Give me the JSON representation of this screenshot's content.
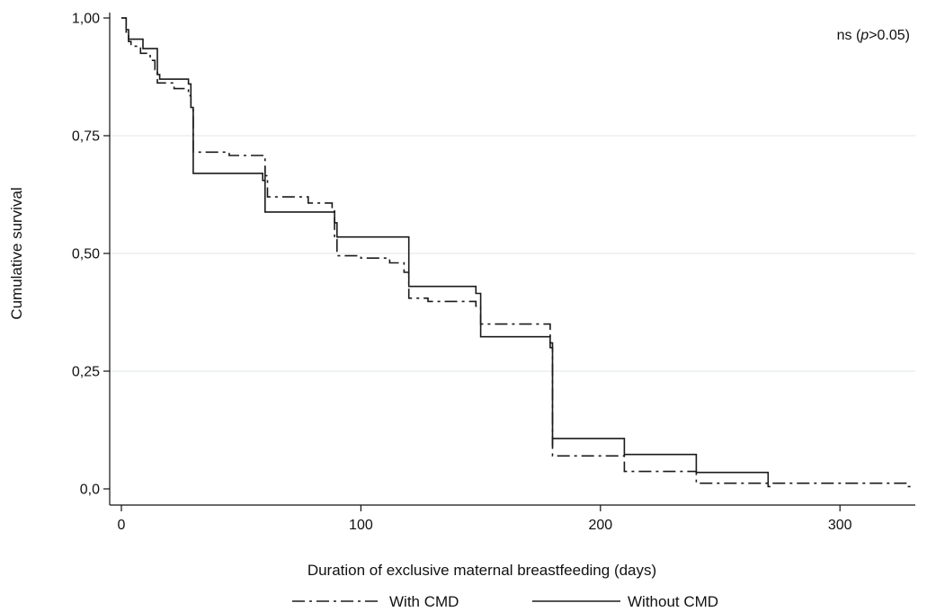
{
  "chart_data": {
    "type": "line",
    "title": "",
    "xlabel": "Duration of exclusive maternal breastfeeding (days)",
    "ylabel": "Cumulative survival",
    "xlim": [
      0,
      330
    ],
    "ylim": [
      0,
      1
    ],
    "x_ticks": [
      0,
      100,
      200,
      300
    ],
    "x_tick_labels": [
      "0",
      "100",
      "200",
      "300"
    ],
    "y_ticks": [
      0,
      0.25,
      0.5,
      0.75,
      1.0
    ],
    "y_tick_labels": [
      "0,0",
      "0,25",
      "0,50",
      "0,75",
      "1,00"
    ],
    "grid": "horizontal",
    "annotation": {
      "prefix": "ns (",
      "italic": "p",
      "suffix": ">0.05)"
    },
    "legend_position": "bottom",
    "series": [
      {
        "name": "With CMD",
        "style": "dash-dot",
        "color": "#1a1a1a",
        "points": [
          [
            0,
            1.0
          ],
          [
            2,
            1.0
          ],
          [
            2,
            0.97
          ],
          [
            3,
            0.97
          ],
          [
            3,
            0.95
          ],
          [
            4,
            0.95
          ],
          [
            4,
            0.94
          ],
          [
            8,
            0.94
          ],
          [
            8,
            0.925
          ],
          [
            12,
            0.925
          ],
          [
            12,
            0.91
          ],
          [
            14,
            0.91
          ],
          [
            14,
            0.89
          ],
          [
            15,
            0.89
          ],
          [
            15,
            0.862
          ],
          [
            22,
            0.862
          ],
          [
            22,
            0.85
          ],
          [
            28,
            0.85
          ],
          [
            28,
            0.835
          ],
          [
            29,
            0.835
          ],
          [
            29,
            0.805
          ],
          [
            30,
            0.805
          ],
          [
            30,
            0.715
          ],
          [
            45,
            0.715
          ],
          [
            45,
            0.708
          ],
          [
            60,
            0.708
          ],
          [
            60,
            0.665
          ],
          [
            61,
            0.665
          ],
          [
            61,
            0.62
          ],
          [
            78,
            0.62
          ],
          [
            78,
            0.607
          ],
          [
            88,
            0.607
          ],
          [
            88,
            0.59
          ],
          [
            89,
            0.59
          ],
          [
            89,
            0.53
          ],
          [
            90,
            0.53
          ],
          [
            90,
            0.495
          ],
          [
            100,
            0.495
          ],
          [
            100,
            0.49
          ],
          [
            112,
            0.49
          ],
          [
            112,
            0.48
          ],
          [
            118,
            0.48
          ],
          [
            118,
            0.46
          ],
          [
            120,
            0.46
          ],
          [
            120,
            0.405
          ],
          [
            128,
            0.405
          ],
          [
            128,
            0.398
          ],
          [
            148,
            0.398
          ],
          [
            148,
            0.388
          ],
          [
            150,
            0.388
          ],
          [
            150,
            0.35
          ],
          [
            179,
            0.35
          ],
          [
            179,
            0.3
          ],
          [
            180,
            0.3
          ],
          [
            180,
            0.07
          ],
          [
            210,
            0.07
          ],
          [
            210,
            0.037
          ],
          [
            240,
            0.037
          ],
          [
            240,
            0.012
          ],
          [
            275,
            0.012
          ],
          [
            275,
            0.012
          ],
          [
            328,
            0.012
          ],
          [
            328,
            0.005
          ],
          [
            330,
            0.005
          ]
        ]
      },
      {
        "name": "Without CMD",
        "style": "solid",
        "color": "#1a1a1a",
        "points": [
          [
            0,
            1.0
          ],
          [
            2,
            1.0
          ],
          [
            2,
            0.975
          ],
          [
            3,
            0.975
          ],
          [
            3,
            0.955
          ],
          [
            9,
            0.955
          ],
          [
            9,
            0.935
          ],
          [
            15,
            0.935
          ],
          [
            15,
            0.88
          ],
          [
            16,
            0.88
          ],
          [
            16,
            0.87
          ],
          [
            28,
            0.87
          ],
          [
            28,
            0.86
          ],
          [
            29,
            0.86
          ],
          [
            29,
            0.81
          ],
          [
            30,
            0.81
          ],
          [
            30,
            0.67
          ],
          [
            59,
            0.67
          ],
          [
            59,
            0.655
          ],
          [
            60,
            0.655
          ],
          [
            60,
            0.685
          ],
          [
            60,
            0.588
          ],
          [
            89,
            0.588
          ],
          [
            89,
            0.565
          ],
          [
            90,
            0.565
          ],
          [
            90,
            0.535
          ],
          [
            120,
            0.535
          ],
          [
            120,
            0.43
          ],
          [
            148,
            0.43
          ],
          [
            148,
            0.415
          ],
          [
            150,
            0.415
          ],
          [
            150,
            0.323
          ],
          [
            179,
            0.323
          ],
          [
            179,
            0.31
          ],
          [
            180,
            0.31
          ],
          [
            180,
            0.09
          ],
          [
            180,
            0.107
          ],
          [
            210,
            0.107
          ],
          [
            210,
            0.073
          ],
          [
            240,
            0.073
          ],
          [
            240,
            0.035
          ],
          [
            270,
            0.035
          ],
          [
            270,
            0.005
          ],
          [
            271,
            0.005
          ]
        ]
      }
    ]
  }
}
